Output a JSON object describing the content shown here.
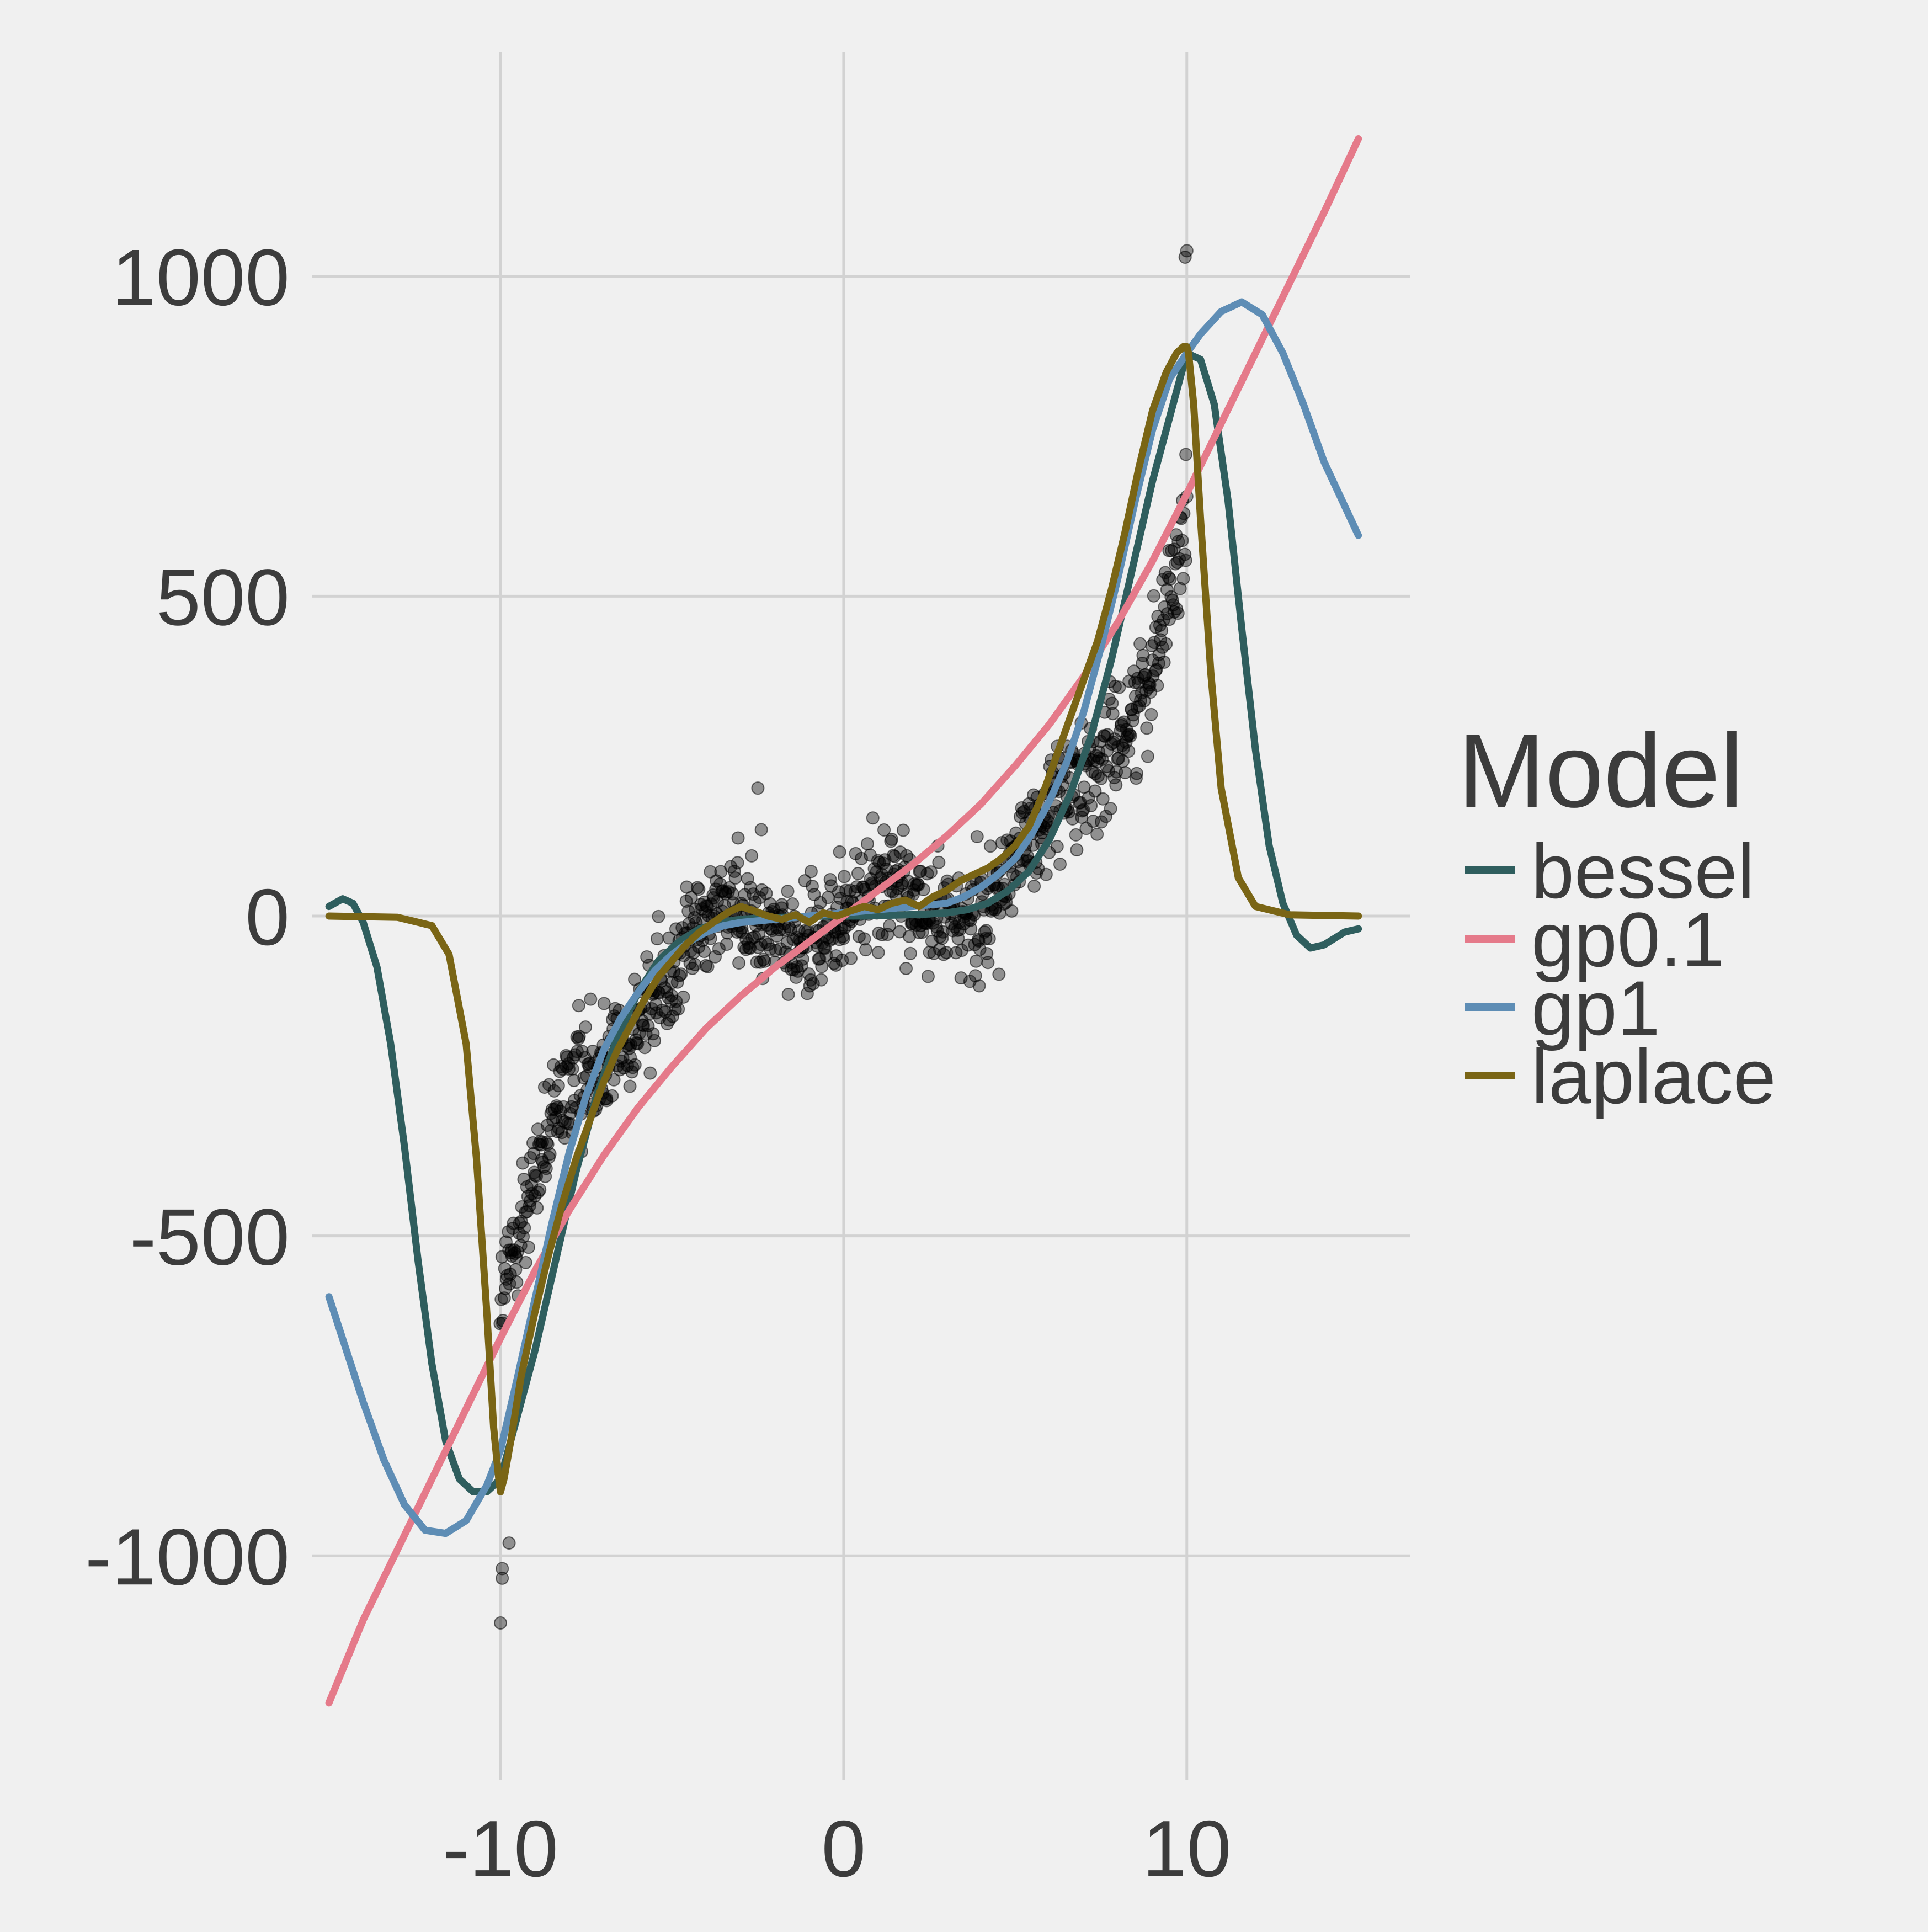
{
  "chart_data": {
    "type": "scatter",
    "title": "",
    "xlabel": "",
    "ylabel": "",
    "xlim": [
      -15.5,
      16.5
    ],
    "ylim": [
      -1350,
      1350
    ],
    "xticks": [
      -10,
      0,
      10
    ],
    "yticks": [
      -1000,
      -500,
      0,
      500,
      1000
    ],
    "xtick_labels": [
      "-10",
      "0",
      "10"
    ],
    "ytick_labels": [
      "-1000",
      "-500",
      "0",
      "500",
      "1000"
    ],
    "grid": true,
    "background": "#F0F0F0",
    "grid_color": "#D2D2D2",
    "legend": {
      "title": "Model",
      "placement": "right",
      "entries": [
        "bessel",
        "gp0.1",
        "gp1",
        "laplace"
      ]
    },
    "points": {
      "color": "#000000",
      "opacity": 0.4,
      "n": 1000,
      "x_range": [
        -10,
        10
      ],
      "trend": "0.6*x^3 + 40*sin(1.3*x)",
      "noise_sd": 45,
      "outliers": [
        [
          -10,
          -1105
        ],
        [
          -9.95,
          -1035
        ],
        [
          -9.95,
          -1020
        ],
        [
          -9.75,
          -980
        ],
        [
          10,
          1040
        ],
        [
          9.95,
          1030
        ],
        [
          -2.5,
          200
        ],
        [
          -2.4,
          135
        ],
        [
          1.4,
          120
        ],
        [
          5.9,
          65
        ]
      ]
    },
    "series": [
      {
        "name": "bessel",
        "color": "#2F5E5E",
        "x": [
          -15,
          -14.6,
          -14.3,
          -14,
          -13.6,
          -13.2,
          -12.8,
          -12.4,
          -12,
          -11.6,
          -11.2,
          -10.8,
          -10.4,
          -10,
          -9.6,
          -9,
          -8.4,
          -7.8,
          -7.2,
          -6.6,
          -6,
          -5.4,
          -4.8,
          -4.2,
          -3.6,
          -3,
          -2.4,
          -1.8,
          -1.2,
          -0.6,
          0,
          0.6,
          1.2,
          1.8,
          2.4,
          3,
          3.6,
          4.2,
          4.8,
          5.4,
          6,
          6.6,
          7.2,
          7.8,
          8.4,
          9,
          9.6,
          10,
          10.4,
          10.8,
          11.2,
          11.6,
          12,
          12.4,
          12.8,
          13.2,
          13.6,
          14,
          14.3,
          14.6,
          15
        ],
        "y": [
          15,
          27,
          20,
          -10,
          -80,
          -200,
          -360,
          -540,
          -700,
          -820,
          -880,
          -900,
          -900,
          -880,
          -800,
          -680,
          -540,
          -400,
          -280,
          -190,
          -120,
          -70,
          -40,
          -20,
          -10,
          -5,
          -3,
          -2,
          -1,
          0,
          0,
          0,
          1,
          2,
          3,
          5,
          10,
          20,
          40,
          70,
          120,
          190,
          280,
          400,
          540,
          680,
          800,
          880,
          870,
          800,
          650,
          450,
          260,
          110,
          20,
          -30,
          -50,
          -45,
          -35,
          -25,
          -20
        ]
      },
      {
        "name": "gp0.1",
        "color": "#E57A8A",
        "x": [
          -15,
          -14,
          -13,
          -12,
          -11,
          -10,
          -9,
          -8,
          -7,
          -6,
          -5,
          -4,
          -3,
          -2,
          -1,
          0,
          1,
          2,
          3,
          4,
          5,
          6,
          7,
          8,
          9,
          10,
          11,
          12,
          13,
          14,
          15
        ],
        "y": [
          -1230,
          -1100,
          -990,
          -880,
          -770,
          -660,
          -555,
          -460,
          -375,
          -300,
          -235,
          -175,
          -125,
          -80,
          -40,
          0,
          40,
          80,
          125,
          175,
          235,
          300,
          375,
          460,
          555,
          660,
          770,
          880,
          990,
          1100,
          1215
        ]
      },
      {
        "name": "gp1",
        "color": "#5E8DB5",
        "x": [
          -15,
          -14,
          -13.4,
          -12.8,
          -12.2,
          -11.6,
          -11,
          -10.4,
          -10,
          -9.5,
          -9,
          -8.5,
          -8,
          -7.5,
          -7,
          -6.5,
          -6,
          -5.5,
          -5,
          -4.5,
          -4,
          -3.5,
          -3,
          -2,
          -1,
          0,
          1,
          2,
          3,
          3.5,
          4,
          4.5,
          5,
          5.5,
          6,
          6.5,
          7,
          7.5,
          8,
          8.5,
          9,
          9.5,
          10,
          10.4,
          11,
          11.6,
          12.2,
          12.8,
          13.4,
          14,
          15
        ],
        "y": [
          -595,
          -760,
          -850,
          -920,
          -960,
          -965,
          -945,
          -890,
          -835,
          -720,
          -600,
          -480,
          -370,
          -280,
          -210,
          -160,
          -120,
          -85,
          -60,
          -40,
          -25,
          -15,
          -10,
          -5,
          0,
          5,
          10,
          15,
          20,
          30,
          45,
          65,
          90,
          130,
          180,
          240,
          320,
          420,
          530,
          650,
          760,
          840,
          880,
          910,
          945,
          960,
          940,
          880,
          800,
          710,
          595
        ]
      },
      {
        "name": "laplace",
        "color": "#7A6515",
        "x": [
          -15,
          -13,
          -12,
          -11.5,
          -11,
          -10.7,
          -10.4,
          -10.2,
          -10.05,
          -10,
          -9.9,
          -9.7,
          -9.4,
          -9,
          -8.6,
          -8.2,
          -7.8,
          -7.4,
          -7,
          -6.6,
          -6.2,
          -5.8,
          -5.4,
          -5,
          -4.6,
          -4.2,
          -3.8,
          -3.4,
          -3,
          -2.6,
          -2.2,
          -1.8,
          -1.4,
          -1,
          -0.6,
          -0.2,
          0.2,
          0.6,
          1,
          1.4,
          1.8,
          2.2,
          2.6,
          3,
          3.4,
          3.8,
          4.2,
          4.6,
          5,
          5.4,
          5.8,
          6.2,
          6.6,
          7,
          7.4,
          7.8,
          8.2,
          8.6,
          9,
          9.4,
          9.7,
          9.9,
          10,
          10.05,
          10.2,
          10.4,
          10.7,
          11,
          11.5,
          12,
          13,
          15
        ],
        "y": [
          0,
          -2,
          -15,
          -60,
          -200,
          -380,
          -620,
          -800,
          -880,
          -900,
          -880,
          -820,
          -720,
          -620,
          -530,
          -450,
          -380,
          -320,
          -260,
          -210,
          -170,
          -130,
          -95,
          -70,
          -45,
          -25,
          -10,
          5,
          15,
          8,
          0,
          -5,
          2,
          -10,
          5,
          0,
          8,
          15,
          10,
          20,
          25,
          15,
          30,
          40,
          55,
          65,
          75,
          90,
          110,
          140,
          190,
          250,
          310,
          370,
          430,
          510,
          600,
          700,
          790,
          850,
          880,
          890,
          890,
          880,
          800,
          620,
          380,
          200,
          60,
          15,
          2,
          0
        ]
      }
    ]
  }
}
